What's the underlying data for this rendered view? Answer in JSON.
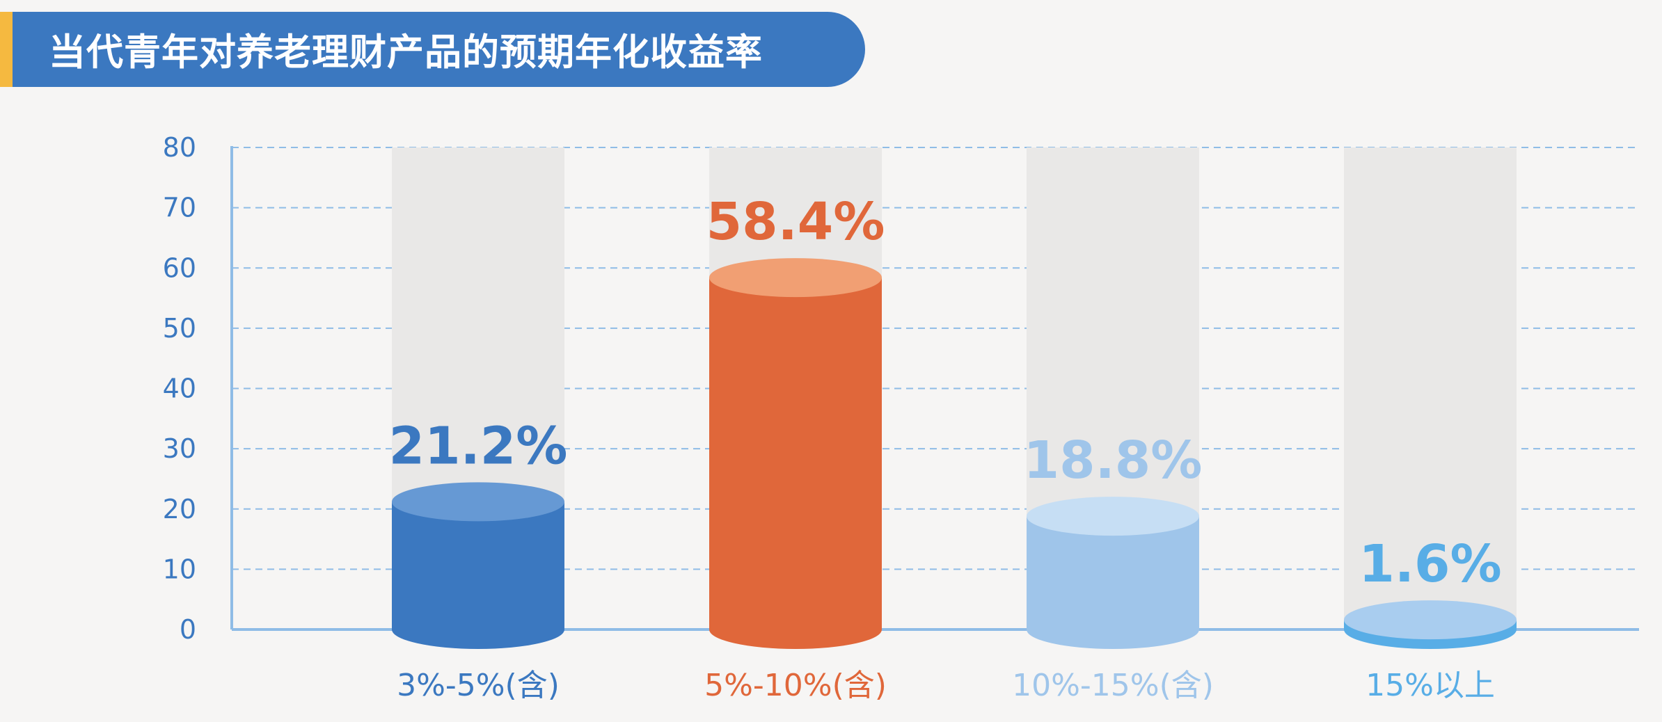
{
  "title": "当代青年对养老理财产品的预期年化收益率",
  "chart_data": {
    "type": "bar",
    "categories": [
      "3%-5%(含)",
      "5%-10%(含)",
      "10%-15%(含)",
      "15%以上"
    ],
    "values": [
      21.2,
      58.4,
      18.8,
      1.6
    ],
    "value_labels": [
      "21.2%",
      "58.4%",
      "18.8%",
      "1.6%"
    ],
    "ylim": [
      0,
      80
    ],
    "yticks": [
      "0",
      "10",
      "20",
      "30",
      "40",
      "50",
      "60",
      "70",
      "80"
    ],
    "grid": true,
    "colors": {
      "bars": [
        "#3b78c0",
        "#e0673a",
        "#9fc5ea",
        "#58ade6"
      ],
      "bar_tops": [
        "#6699d4",
        "#f19f73",
        "#c6def4",
        "#a9cdef"
      ],
      "category_labels": [
        "#3b78c0",
        "#e0673a",
        "#9fc5ea",
        "#58ade6"
      ],
      "value_labels": [
        "#3b78c0",
        "#e0673a",
        "#9fc5ea",
        "#58ade6"
      ],
      "axis": "#8fbce6",
      "grid": "#8fbce6",
      "tick_labels": "#3b78c0",
      "track": "#e9e8e7"
    }
  }
}
